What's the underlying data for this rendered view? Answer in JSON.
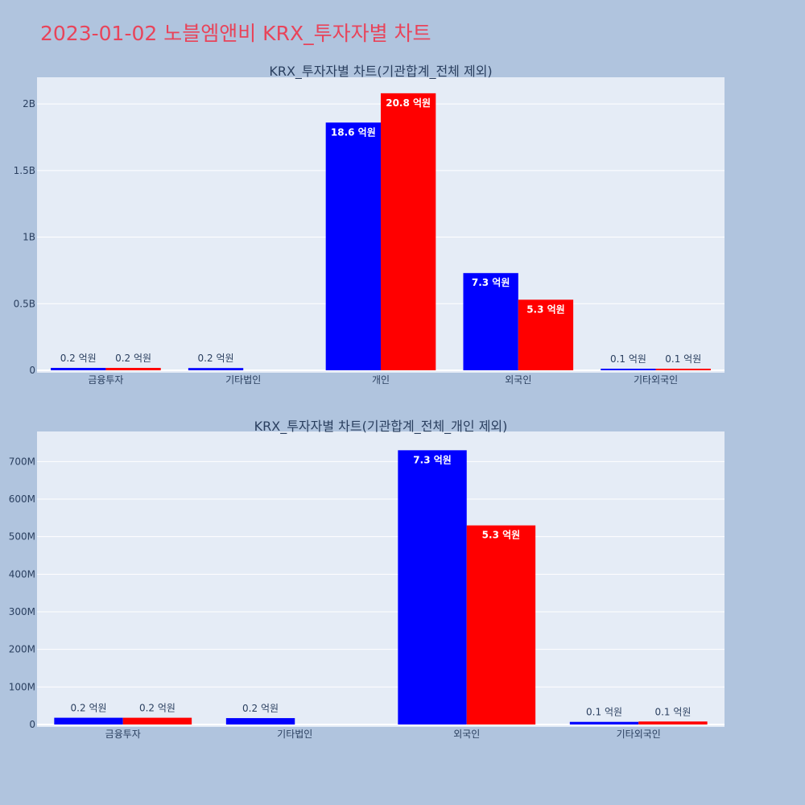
{
  "page_title": "2023-01-02 노블엠앤비 KRX_투자자별 차트",
  "colors": {
    "buy": "#0000ff",
    "sell": "#ff0000",
    "plot_bg": "#e5ecf6",
    "page_bg": "#b0c4de",
    "title": "#e8445a"
  },
  "chart_data": [
    {
      "type": "bar",
      "title": "KRX_투자자별 차트(기관합계_전체 제외)",
      "categories": [
        "금융투자",
        "기타법인",
        "개인",
        "외국인",
        "기타외국인"
      ],
      "series": [
        {
          "values": [
            18000000,
            17000000,
            1860000000,
            730000000,
            7000000
          ],
          "labels": [
            "0.2 억원",
            "0.2 억원",
            "18.6 억원",
            "7.3 억원",
            "0.1 억원"
          ]
        },
        {
          "values": [
            18000000,
            0,
            2080000000,
            530000000,
            8000000
          ],
          "labels": [
            "0.2 억원",
            "",
            "20.8 억원",
            "5.3 억원",
            "0.1 억원"
          ]
        }
      ],
      "ylim": [
        0,
        2200000000
      ],
      "yticks": [
        0,
        500000000,
        1000000000,
        1500000000,
        2000000000
      ],
      "ytick_labels": [
        "0",
        "0.5B",
        "1B",
        "1.5B",
        "2B"
      ],
      "xlabel": "",
      "ylabel": "",
      "grid": true
    },
    {
      "type": "bar",
      "title": "KRX_투자자별 차트(기관합계_전체_개인 제외)",
      "categories": [
        "금융투자",
        "기타법인",
        "외국인",
        "기타외국인"
      ],
      "series": [
        {
          "values": [
            18000000,
            17000000,
            730000000,
            7000000
          ],
          "labels": [
            "0.2 억원",
            "0.2 억원",
            "7.3 억원",
            "0.1 억원"
          ]
        },
        {
          "values": [
            18000000,
            0,
            530000000,
            8000000
          ],
          "labels": [
            "0.2 억원",
            "",
            "5.3 억원",
            "0.1 억원"
          ]
        }
      ],
      "ylim": [
        0,
        780000000
      ],
      "yticks": [
        0,
        100000000,
        200000000,
        300000000,
        400000000,
        500000000,
        600000000,
        700000000
      ],
      "ytick_labels": [
        "0",
        "100M",
        "200M",
        "300M",
        "400M",
        "500M",
        "600M",
        "700M"
      ],
      "xlabel": "",
      "ylabel": "",
      "grid": true
    }
  ]
}
